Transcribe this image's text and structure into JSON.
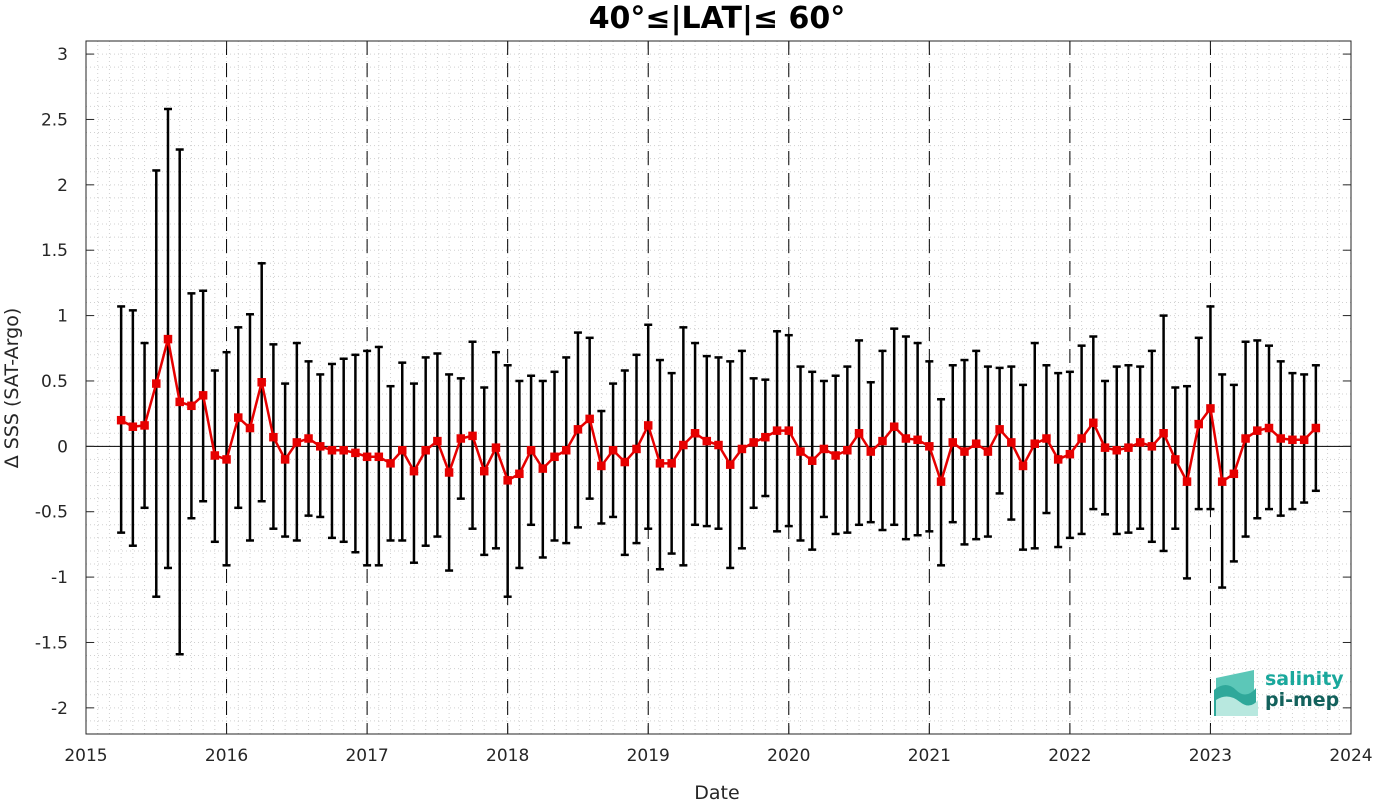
{
  "chart_data": {
    "type": "line",
    "title": "40°≤|LAT|≤ 60°",
    "xlabel": "Date",
    "ylabel": "Δ SSS (SAT-Argo)",
    "xlim": [
      "2015-01-01",
      "2024-01-01"
    ],
    "ylim": [
      -2.2,
      3.1
    ],
    "x_ticks": [
      "2015",
      "2016",
      "2017",
      "2018",
      "2019",
      "2020",
      "2021",
      "2022",
      "2023",
      "2024"
    ],
    "y_ticks": [
      "3",
      "2.5",
      "2",
      "1.5",
      "1",
      "0.5",
      "0",
      "-0.5",
      "-1",
      "-1.5",
      "-2"
    ],
    "grid": "minor dotted",
    "year_boundaries": "dashed vertical lines",
    "series": [
      {
        "color": "#e60000",
        "marker": "square",
        "error_bar_color": "#000000",
        "start": "2015-04",
        "interval": "monthly",
        "x": [
          "2015-04",
          "2015-05",
          "2015-06",
          "2015-07",
          "2015-08",
          "2015-09",
          "2015-10",
          "2015-11",
          "2015-12",
          "2016-01",
          "2016-02",
          "2016-03",
          "2016-04",
          "2016-05",
          "2016-06",
          "2016-07",
          "2016-08",
          "2016-09",
          "2016-10",
          "2016-11",
          "2016-12",
          "2017-01",
          "2017-02",
          "2017-03",
          "2017-04",
          "2017-05",
          "2017-06",
          "2017-07",
          "2017-08",
          "2017-09",
          "2017-10",
          "2017-11",
          "2017-12",
          "2018-01",
          "2018-02",
          "2018-03",
          "2018-04",
          "2018-05",
          "2018-06",
          "2018-07",
          "2018-08",
          "2018-09",
          "2018-10",
          "2018-11",
          "2018-12",
          "2019-01",
          "2019-02",
          "2019-03",
          "2019-04",
          "2019-05",
          "2019-06",
          "2019-07",
          "2019-08",
          "2019-09",
          "2019-10",
          "2019-11",
          "2019-12",
          "2020-01",
          "2020-02",
          "2020-03",
          "2020-04",
          "2020-05",
          "2020-06",
          "2020-07",
          "2020-08",
          "2020-09",
          "2020-10",
          "2020-11",
          "2020-12",
          "2021-01",
          "2021-02",
          "2021-03",
          "2021-04",
          "2021-05",
          "2021-06",
          "2021-07",
          "2021-08",
          "2021-09",
          "2021-10",
          "2021-11",
          "2021-12",
          "2022-01",
          "2022-02",
          "2022-03",
          "2022-04",
          "2022-05",
          "2022-06",
          "2022-07",
          "2022-08",
          "2022-09",
          "2022-10",
          "2022-11",
          "2022-12",
          "2023-01",
          "2023-02",
          "2023-03",
          "2023-04",
          "2023-05",
          "2023-06",
          "2023-07",
          "2023-08",
          "2023-09",
          "2023-10"
        ],
        "values": [
          0.2,
          0.15,
          0.16,
          0.48,
          0.82,
          0.34,
          0.31,
          0.39,
          -0.07,
          -0.1,
          0.22,
          0.14,
          0.49,
          0.07,
          -0.1,
          0.03,
          0.06,
          0.0,
          -0.03,
          -0.03,
          -0.05,
          -0.08,
          -0.08,
          -0.13,
          -0.03,
          -0.19,
          -0.03,
          0.04,
          -0.2,
          0.06,
          0.08,
          -0.19,
          -0.01,
          -0.26,
          -0.21,
          -0.03,
          -0.17,
          -0.08,
          -0.03,
          0.13,
          0.21,
          -0.15,
          -0.03,
          -0.12,
          -0.02,
          0.16,
          -0.13,
          -0.13,
          0.01,
          0.1,
          0.04,
          0.01,
          -0.14,
          -0.02,
          0.03,
          0.07,
          0.12,
          0.12,
          -0.04,
          -0.11,
          -0.02,
          -0.07,
          -0.03,
          0.1,
          -0.04,
          0.04,
          0.15,
          0.06,
          0.05,
          0.0,
          -0.27,
          0.03,
          -0.04,
          0.02,
          -0.04,
          0.13,
          0.03,
          -0.15,
          0.02,
          0.06,
          -0.1,
          -0.06,
          0.06,
          0.18,
          -0.01,
          -0.03,
          -0.01,
          0.03,
          0.0,
          0.1,
          -0.1,
          -0.27,
          0.17,
          0.29,
          -0.27,
          -0.21,
          0.06,
          0.12,
          0.14,
          0.06,
          0.05,
          0.05,
          0.14
        ],
        "upper": [
          1.07,
          1.04,
          0.79,
          2.11,
          2.58,
          2.27,
          1.17,
          1.19,
          0.58,
          0.72,
          0.91,
          1.01,
          1.4,
          0.78,
          0.48,
          0.79,
          0.65,
          0.55,
          0.63,
          0.67,
          0.7,
          0.73,
          0.76,
          0.46,
          0.64,
          0.48,
          0.68,
          0.71,
          0.55,
          0.52,
          0.8,
          0.45,
          0.72,
          0.62,
          0.5,
          0.54,
          0.5,
          0.57,
          0.68,
          0.87,
          0.83,
          0.27,
          0.48,
          0.58,
          0.7,
          0.93,
          0.66,
          0.56,
          0.91,
          0.79,
          0.69,
          0.68,
          0.65,
          0.73,
          0.52,
          0.51,
          0.88,
          0.85,
          0.61,
          0.57,
          0.5,
          0.54,
          0.61,
          0.81,
          0.49,
          0.73,
          0.9,
          0.84,
          0.79,
          0.65,
          0.36,
          0.62,
          0.66,
          0.73,
          0.61,
          0.6,
          0.61,
          0.47,
          0.79,
          0.62,
          0.56,
          0.57,
          0.77,
          0.84,
          0.5,
          0.61,
          0.62,
          0.61,
          0.73,
          1.0,
          0.45,
          0.46,
          0.83,
          1.07,
          0.55,
          0.47,
          0.8,
          0.81,
          0.77,
          0.65,
          0.56,
          0.55,
          0.62
        ],
        "lower": [
          -0.66,
          -0.76,
          -0.47,
          -1.15,
          -0.93,
          -1.59,
          -0.55,
          -0.42,
          -0.73,
          -0.91,
          -0.47,
          -0.72,
          -0.42,
          -0.63,
          -0.69,
          -0.72,
          -0.53,
          -0.54,
          -0.7,
          -0.73,
          -0.81,
          -0.91,
          -0.91,
          -0.72,
          -0.72,
          -0.89,
          -0.76,
          -0.69,
          -0.95,
          -0.4,
          -0.63,
          -0.83,
          -0.78,
          -1.15,
          -0.93,
          -0.6,
          -0.85,
          -0.72,
          -0.74,
          -0.62,
          -0.4,
          -0.59,
          -0.54,
          -0.83,
          -0.74,
          -0.63,
          -0.94,
          -0.82,
          -0.91,
          -0.6,
          -0.61,
          -0.63,
          -0.93,
          -0.78,
          -0.47,
          -0.38,
          -0.65,
          -0.61,
          -0.72,
          -0.79,
          -0.54,
          -0.67,
          -0.66,
          -0.6,
          -0.58,
          -0.64,
          -0.6,
          -0.71,
          -0.68,
          -0.65,
          -0.91,
          -0.58,
          -0.75,
          -0.71,
          -0.69,
          -0.36,
          -0.56,
          -0.79,
          -0.78,
          -0.51,
          -0.77,
          -0.7,
          -0.67,
          -0.48,
          -0.52,
          -0.67,
          -0.66,
          -0.63,
          -0.73,
          -0.8,
          -0.63,
          -1.01,
          -0.48,
          -0.48,
          -1.08,
          -0.88,
          -0.69,
          -0.55,
          -0.48,
          -0.53,
          -0.48,
          -0.43,
          -0.34
        ]
      }
    ]
  },
  "logo": {
    "line1": "salinity",
    "line2": "pi-mep",
    "color1": "#1aa89c",
    "color2": "#13615c"
  }
}
